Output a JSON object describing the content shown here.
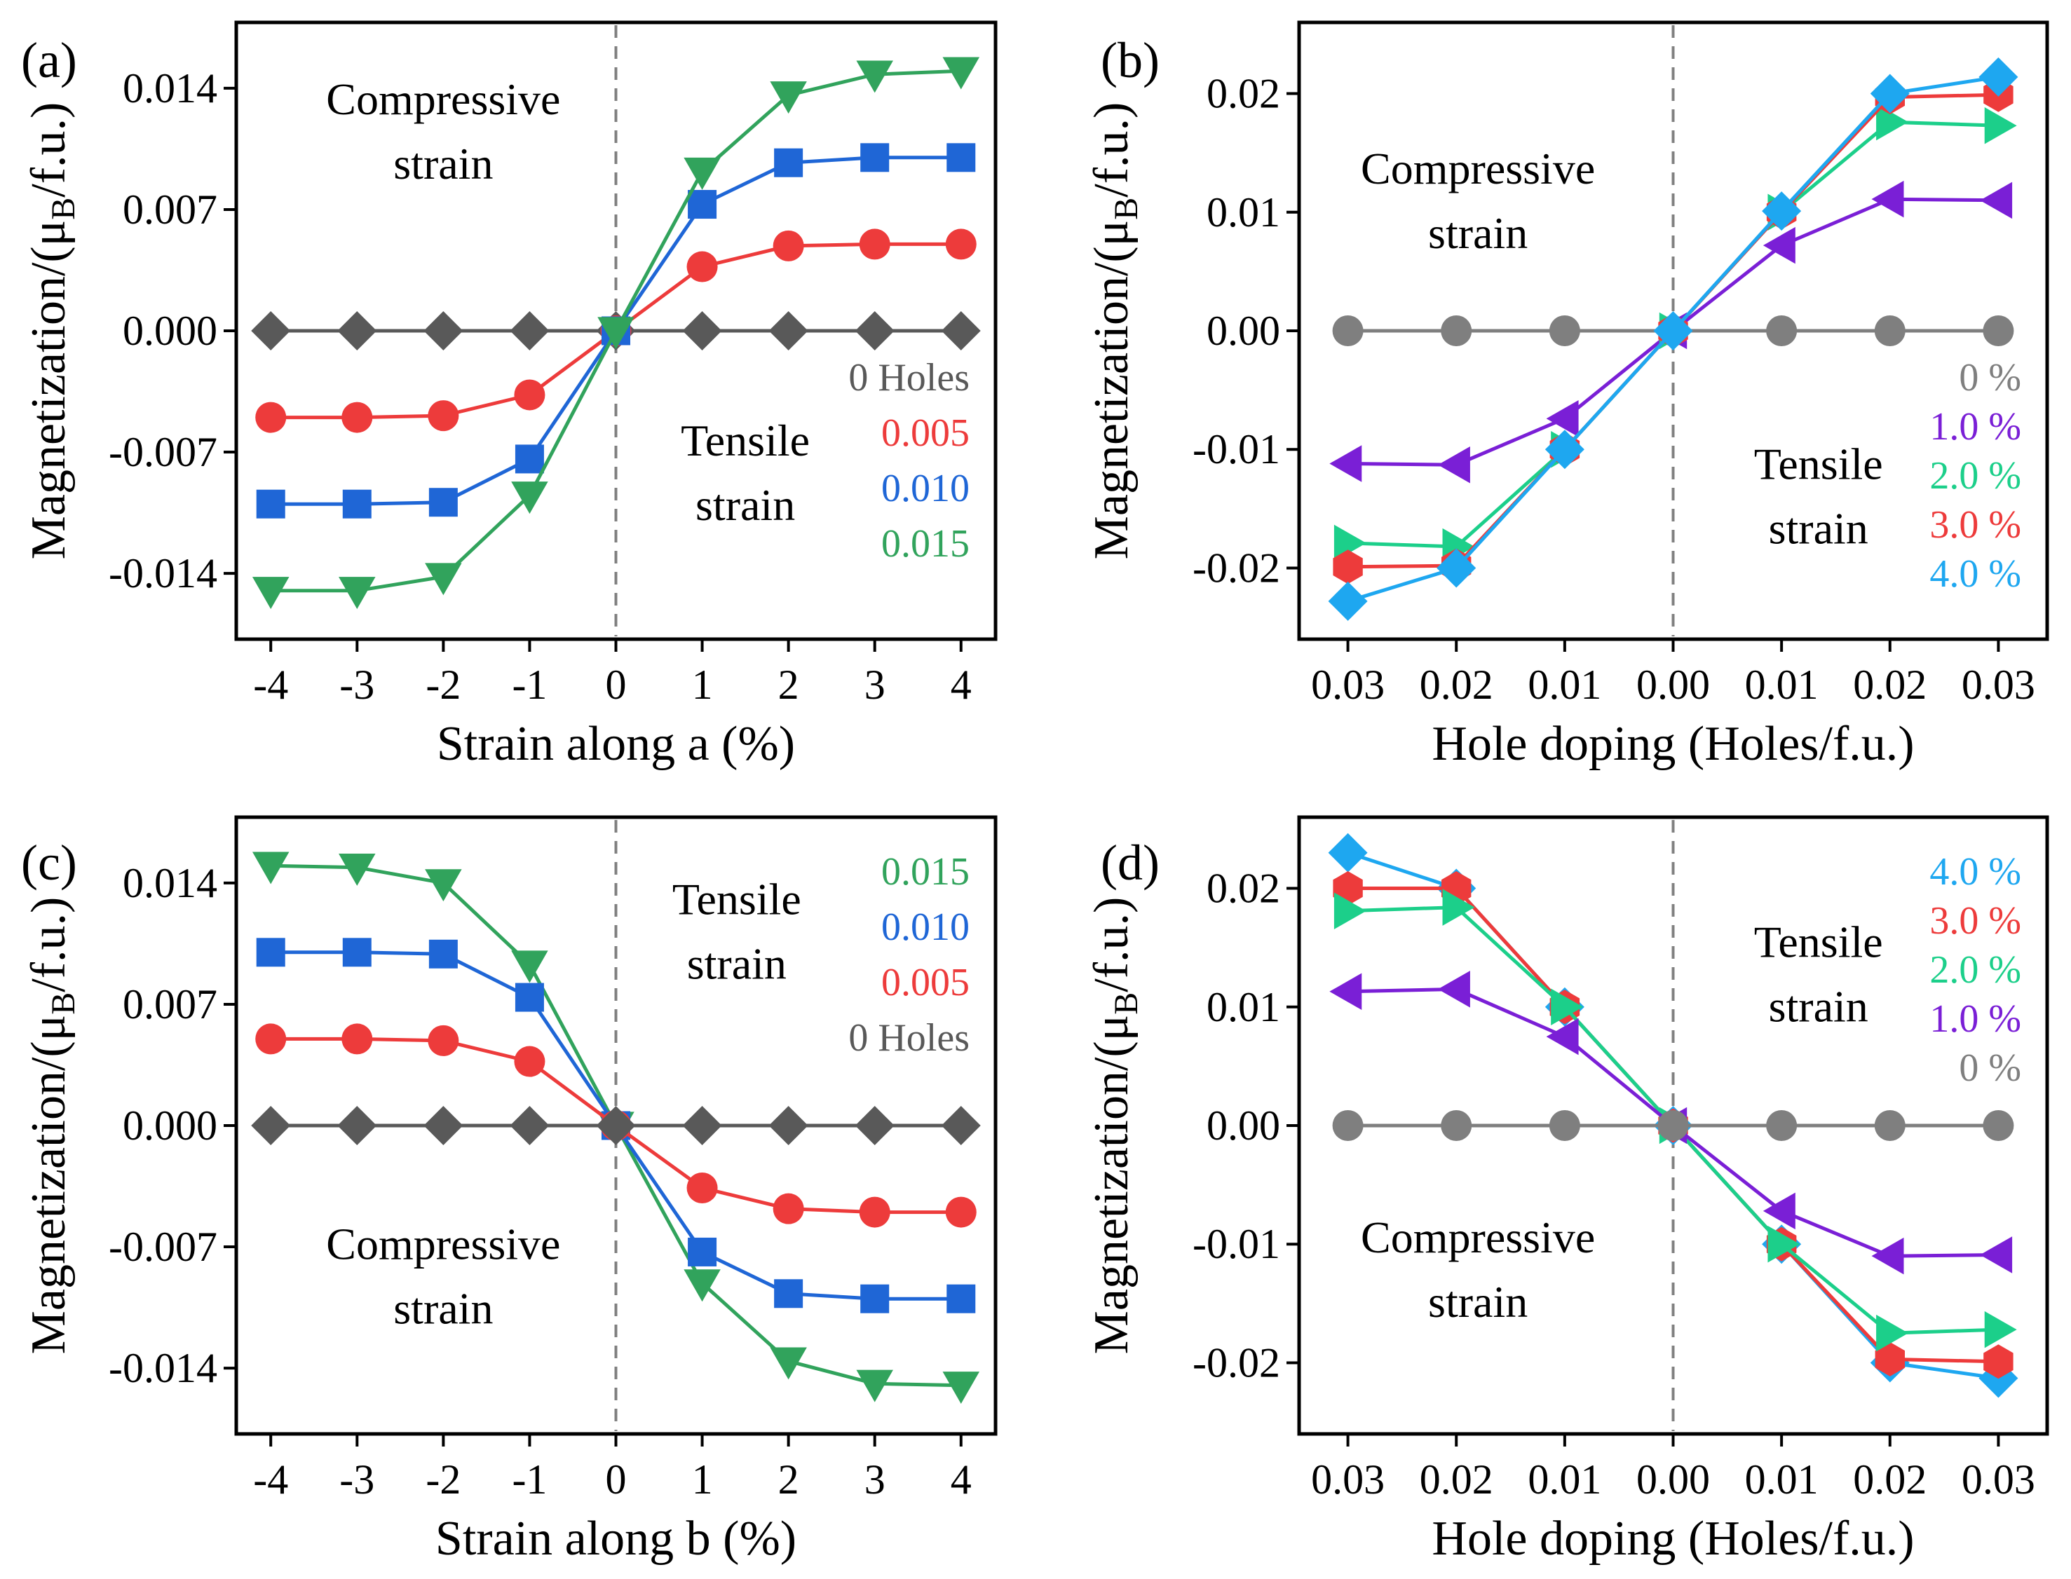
{
  "chart_data": [
    {
      "panel": "(a)",
      "type": "line",
      "xlabel": "Strain along a (%)",
      "ylabel_main": "Magnetization/(μ",
      "ylabel_sub": "B",
      "ylabel_tail": "/f.u.)",
      "xlim": [
        -4.4,
        4.4
      ],
      "ylim": [
        -0.0178,
        0.0178
      ],
      "x_ticks": [
        -4,
        -3,
        -2,
        -1,
        0,
        1,
        2,
        3,
        4
      ],
      "x_tick_labels": [
        "-4",
        "-3",
        "-2",
        "-1",
        "0",
        "1",
        "2",
        "3",
        "4"
      ],
      "y_ticks": [
        -0.014,
        -0.007,
        0,
        0.007,
        0.014
      ],
      "y_tick_labels": [
        "-0.014",
        "-0.007",
        "0.000",
        "0.007",
        "0.014"
      ],
      "annotations": [
        {
          "lines": [
            "Compressive",
            "strain"
          ],
          "x": -2.0,
          "y": 0.0125
        },
        {
          "lines": [
            "Tensile",
            "strain"
          ],
          "x": 1.5,
          "y": -0.0072
        }
      ],
      "legend": {
        "position": "lower-right"
      },
      "series": [
        {
          "name": "0 Holes",
          "color": "#595959",
          "marker": "diamond",
          "x": [
            -4,
            -3,
            -2,
            -1,
            0,
            1,
            2,
            3,
            4
          ],
          "y": [
            0,
            0,
            0,
            0,
            0,
            0,
            0,
            0,
            0
          ]
        },
        {
          "name": "0.005",
          "color": "#ed3b3b",
          "marker": "circle",
          "x": [
            -4,
            -3,
            -2,
            -1,
            0,
            1,
            2,
            3,
            4
          ],
          "y": [
            -0.005,
            -0.005,
            -0.0049,
            -0.0037,
            0,
            0.0037,
            0.0049,
            0.005,
            0.005
          ]
        },
        {
          "name": "0.010",
          "color": "#1f66d6",
          "marker": "square",
          "x": [
            -4,
            -3,
            -2,
            -1,
            0,
            1,
            2,
            3,
            4
          ],
          "y": [
            -0.01,
            -0.01,
            -0.0099,
            -0.0074,
            0,
            0.0073,
            0.0097,
            0.01,
            0.01
          ]
        },
        {
          "name": "0.015",
          "color": "#31a35c",
          "marker": "triangle-down",
          "x": [
            -4,
            -3,
            -2,
            -1,
            0,
            1,
            2,
            3,
            4
          ],
          "y": [
            -0.015,
            -0.015,
            -0.0142,
            -0.0095,
            0,
            0.0092,
            0.0136,
            0.0148,
            0.015
          ]
        }
      ]
    },
    {
      "panel": "(b)",
      "type": "line",
      "xlabel": "Hole doping (Holes/f.u.)",
      "ylabel_main": "Magnetization/(μ",
      "ylabel_sub": "B",
      "ylabel_tail": "/f.u.)",
      "xlim": [
        -0.0345,
        0.0345
      ],
      "ylim": [
        -0.026,
        0.026
      ],
      "x_ticks": [
        -0.03,
        -0.02,
        -0.01,
        0,
        0.01,
        0.02,
        0.03
      ],
      "x_tick_labels": [
        "0.03",
        "0.02",
        "0.01",
        "0.00",
        "0.01",
        "0.02",
        "0.03"
      ],
      "y_ticks": [
        -0.02,
        -0.01,
        0,
        0.01,
        0.02
      ],
      "y_tick_labels": [
        "-0.02",
        "-0.01",
        "0.00",
        "0.01",
        "0.02"
      ],
      "annotations": [
        {
          "lines": [
            "Compressive",
            "strain"
          ],
          "x": -0.018,
          "y": 0.0124
        },
        {
          "lines": [
            "Tensile",
            "strain"
          ],
          "x": 0.0134,
          "y": -0.0125
        }
      ],
      "legend": {
        "position": "lower-right"
      },
      "series": [
        {
          "name": "0 %",
          "color": "#7f7f7f",
          "marker": "circle",
          "x": [
            -0.03,
            -0.02,
            -0.01,
            0,
            0.01,
            0.02,
            0.03
          ],
          "y": [
            0,
            0,
            0,
            0,
            0,
            0,
            0
          ]
        },
        {
          "name": "1.0 %",
          "color": "#7a1fd6",
          "marker": "triangle-left",
          "x": [
            -0.03,
            -0.02,
            -0.01,
            0,
            0.01,
            0.02,
            0.03
          ],
          "y": [
            -0.0112,
            -0.0113,
            -0.0074,
            0,
            0.0072,
            0.0111,
            0.011
          ]
        },
        {
          "name": "2.0 %",
          "color": "#1ccf8a",
          "marker": "triangle-right",
          "x": [
            -0.03,
            -0.02,
            -0.01,
            0,
            0.01,
            0.02,
            0.03
          ],
          "y": [
            -0.0179,
            -0.0182,
            -0.01,
            0,
            0.01,
            0.0176,
            0.0173
          ]
        },
        {
          "name": "3.0 %",
          "color": "#ed3b3b",
          "marker": "hexagon",
          "x": [
            -0.03,
            -0.02,
            -0.01,
            0,
            0.01,
            0.02,
            0.03
          ],
          "y": [
            -0.0199,
            -0.0198,
            -0.01,
            0,
            0.01,
            0.0197,
            0.0199
          ]
        },
        {
          "name": "4.0 %",
          "color": "#1ea7f0",
          "marker": "diamond",
          "x": [
            -0.03,
            -0.02,
            -0.01,
            0,
            0.01,
            0.02,
            0.03
          ],
          "y": [
            -0.0228,
            -0.02,
            -0.01,
            0,
            0.0101,
            0.02,
            0.0214
          ]
        }
      ]
    },
    {
      "panel": "(c)",
      "type": "line",
      "xlabel": "Strain along b (%)",
      "ylabel_main": "Magnetization/(μ",
      "ylabel_sub": "B",
      "ylabel_tail": "/f.u.)",
      "xlim": [
        -4.4,
        4.4
      ],
      "ylim": [
        -0.0178,
        0.0178
      ],
      "x_ticks": [
        -4,
        -3,
        -2,
        -1,
        0,
        1,
        2,
        3,
        4
      ],
      "x_tick_labels": [
        "-4",
        "-3",
        "-2",
        "-1",
        "0",
        "1",
        "2",
        "3",
        "4"
      ],
      "y_ticks": [
        -0.014,
        -0.007,
        0,
        0.007,
        0.014
      ],
      "y_tick_labels": [
        "-0.014",
        "-0.007",
        "0.000",
        "0.007",
        "0.014"
      ],
      "annotations": [
        {
          "lines": [
            "Tensile",
            "strain"
          ],
          "x": 1.4,
          "y": 0.0122
        },
        {
          "lines": [
            "Compressive",
            "strain"
          ],
          "x": -2.0,
          "y": -0.0077
        }
      ],
      "legend": {
        "position": "upper-right"
      },
      "series": [
        {
          "name": "0.015",
          "color": "#31a35c",
          "marker": "triangle-down",
          "x": [
            -4,
            -3,
            -2,
            -1,
            0,
            1,
            2,
            3,
            4
          ],
          "y": [
            0.015,
            0.0149,
            0.014,
            0.0093,
            0,
            -0.0091,
            -0.0136,
            -0.0149,
            -0.015
          ]
        },
        {
          "name": "0.010",
          "color": "#1f66d6",
          "marker": "square",
          "x": [
            -4,
            -3,
            -2,
            -1,
            0,
            1,
            2,
            3,
            4
          ],
          "y": [
            0.01,
            0.01,
            0.0099,
            0.0074,
            0,
            -0.0073,
            -0.0097,
            -0.01,
            -0.01
          ]
        },
        {
          "name": "0.005",
          "color": "#ed3b3b",
          "marker": "circle",
          "x": [
            -4,
            -3,
            -2,
            -1,
            0,
            1,
            2,
            3,
            4
          ],
          "y": [
            0.005,
            0.005,
            0.0049,
            0.0037,
            0,
            -0.0036,
            -0.0048,
            -0.005,
            -0.005
          ]
        },
        {
          "name": "0 Holes",
          "color": "#595959",
          "marker": "diamond",
          "x": [
            -4,
            -3,
            -2,
            -1,
            0,
            1,
            2,
            3,
            4
          ],
          "y": [
            0,
            0,
            0,
            0,
            0,
            0,
            0,
            0,
            0
          ]
        }
      ]
    },
    {
      "panel": "(d)",
      "type": "line",
      "xlabel": "Hole doping (Holes/f.u.)",
      "ylabel_main": "Magnetization/(μ",
      "ylabel_sub": "B",
      "ylabel_tail": "/f.u.)",
      "xlim": [
        -0.0345,
        0.0345
      ],
      "ylim": [
        -0.026,
        0.026
      ],
      "x_ticks": [
        -0.03,
        -0.02,
        -0.01,
        0,
        0.01,
        0.02,
        0.03
      ],
      "x_tick_labels": [
        "0.03",
        "0.02",
        "0.01",
        "0.00",
        "0.01",
        "0.02",
        "0.03"
      ],
      "y_ticks": [
        -0.02,
        -0.01,
        0,
        0.01,
        0.02
      ],
      "y_tick_labels": [
        "-0.02",
        "-0.01",
        "0.00",
        "0.01",
        "0.02"
      ],
      "annotations": [
        {
          "lines": [
            "Tensile",
            "strain"
          ],
          "x": 0.0134,
          "y": 0.0142
        },
        {
          "lines": [
            "Compressive",
            "strain"
          ],
          "x": -0.018,
          "y": -0.0107
        }
      ],
      "legend": {
        "position": "upper-right"
      },
      "series": [
        {
          "name": "4.0 %",
          "color": "#1ea7f0",
          "marker": "diamond",
          "x": [
            -0.03,
            -0.02,
            -0.01,
            0,
            0.01,
            0.02,
            0.03
          ],
          "y": [
            0.023,
            0.02,
            0.01,
            0,
            -0.01,
            -0.02,
            -0.0213
          ]
        },
        {
          "name": "3.0 %",
          "color": "#ed3b3b",
          "marker": "hexagon",
          "x": [
            -0.03,
            -0.02,
            -0.01,
            0,
            0.01,
            0.02,
            0.03
          ],
          "y": [
            0.02,
            0.02,
            0.01,
            0,
            -0.01,
            -0.0197,
            -0.0199
          ]
        },
        {
          "name": "2.0 %",
          "color": "#1ccf8a",
          "marker": "triangle-right",
          "x": [
            -0.03,
            -0.02,
            -0.01,
            0,
            0.01,
            0.02,
            0.03
          ],
          "y": [
            0.0181,
            0.0184,
            0.01,
            0,
            -0.01,
            -0.0175,
            -0.0172
          ]
        },
        {
          "name": "1.0 %",
          "color": "#7a1fd6",
          "marker": "triangle-left",
          "x": [
            -0.03,
            -0.02,
            -0.01,
            0,
            0.01,
            0.02,
            0.03
          ],
          "y": [
            0.0113,
            0.0115,
            0.0075,
            0,
            -0.0072,
            -0.011,
            -0.0109
          ]
        },
        {
          "name": "0 %",
          "color": "#7f7f7f",
          "marker": "circle",
          "x": [
            -0.03,
            -0.02,
            -0.01,
            0,
            0.01,
            0.02,
            0.03
          ],
          "y": [
            0,
            0,
            0,
            0,
            0,
            0,
            0
          ]
        }
      ]
    }
  ]
}
